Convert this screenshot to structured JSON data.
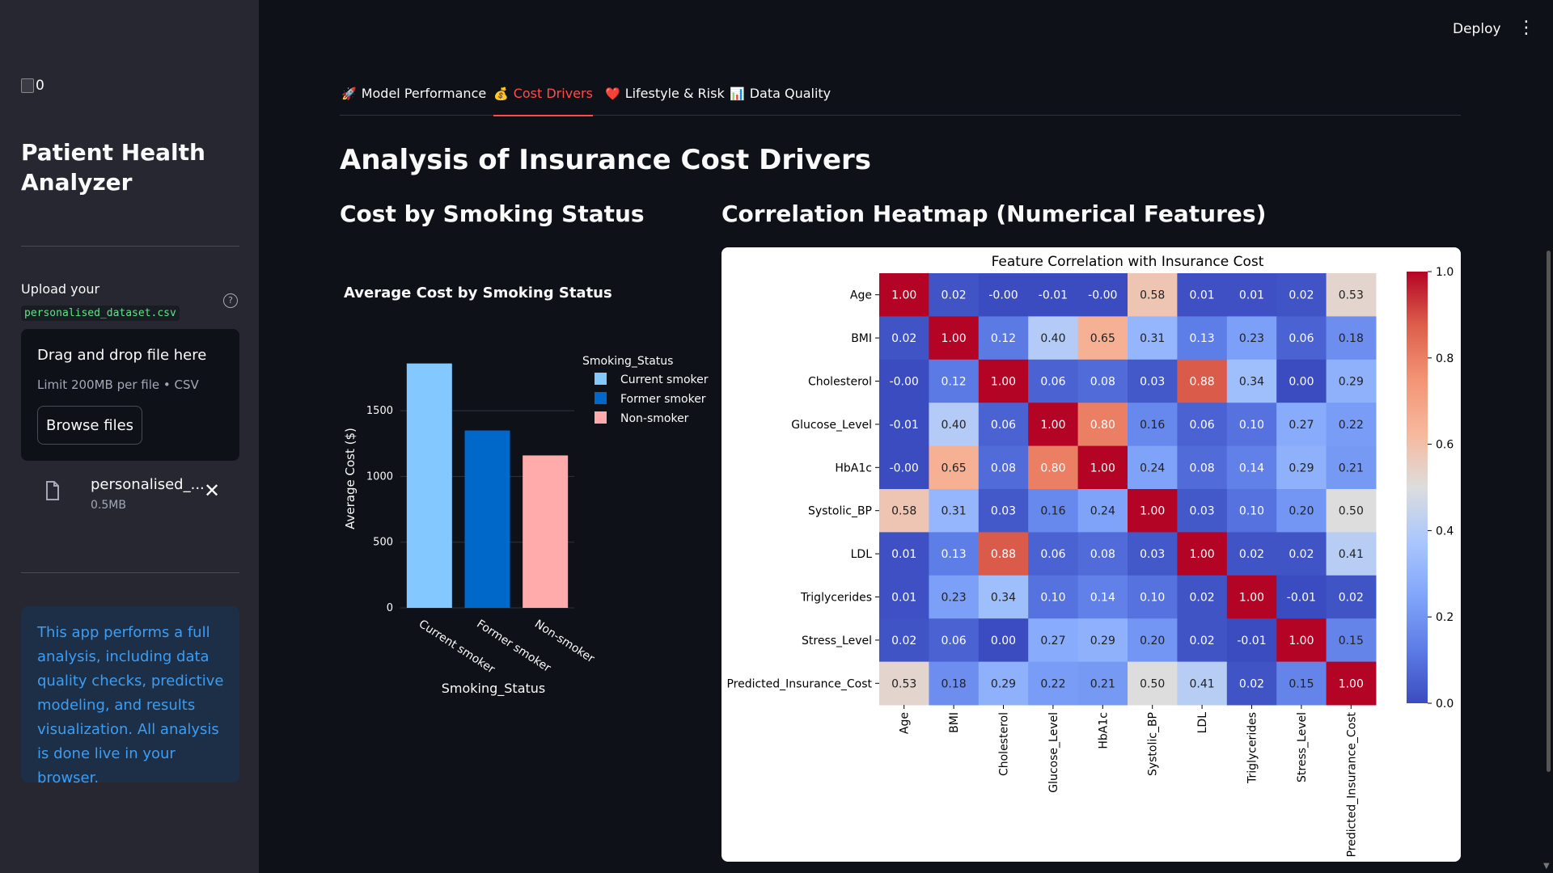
{
  "sidebar": {
    "logo_alt": "0",
    "title": "Patient Health Analyzer",
    "upload_label": "Upload your",
    "upload_filename_code": "personalised_dataset.csv",
    "dropzone_title": "Drag and drop file here",
    "dropzone_limit": "Limit 200MB per file • CSV",
    "browse_label": "Browse files",
    "uploaded_file_name": "personalised_...",
    "uploaded_file_size": "0.5MB",
    "info_text": "This app performs a full analysis, including data quality checks, predictive modeling, and results visualization. All analysis is done live in your browser."
  },
  "header": {
    "deploy_label": "Deploy"
  },
  "tabs": [
    {
      "icon": "🚀",
      "label": "Model Performance"
    },
    {
      "icon": "💰",
      "label": "Cost Drivers"
    },
    {
      "icon": "❤️",
      "label": "Lifestyle & Risk"
    },
    {
      "icon": "📊",
      "label": "Data Quality"
    }
  ],
  "main": {
    "title": "Analysis of Insurance Cost Drivers",
    "left_section_title": "Cost by Smoking Status",
    "right_section_title": "Correlation Heatmap (Numerical Features)"
  },
  "chart_data": [
    {
      "type": "bar",
      "title": "Average Cost by Smoking Status",
      "xlabel": "Smoking_Status",
      "ylabel": "Average Cost ($)",
      "categories": [
        "Current smoker",
        "Former smoker",
        "Non-smoker"
      ],
      "values": [
        1860,
        1350,
        1160
      ],
      "colors": [
        "#83c9ff",
        "#0068c9",
        "#ffabab"
      ],
      "yticks": [
        0,
        500,
        1000,
        1500
      ],
      "ylim": [
        0,
        1950
      ],
      "legend_title": "Smoking_Status",
      "legend": [
        "Current smoker",
        "Former smoker",
        "Non-smoker"
      ],
      "grid": true
    },
    {
      "type": "heatmap",
      "title": "Feature Correlation with Insurance Cost",
      "labels": [
        "Age",
        "BMI",
        "Cholesterol",
        "Glucose_Level",
        "HbA1c",
        "Systolic_BP",
        "LDL",
        "Triglycerides",
        "Stress_Level",
        "Predicted_Insurance_Cost"
      ],
      "cells": [
        [
          "1.00",
          "0.02",
          "-0.00",
          "-0.01",
          "-0.00",
          "0.58",
          "0.01",
          "0.01",
          "0.02",
          "0.53"
        ],
        [
          "0.02",
          "1.00",
          "0.12",
          "0.40",
          "0.65",
          "0.31",
          "0.13",
          "0.23",
          "0.06",
          "0.18"
        ],
        [
          "-0.00",
          "0.12",
          "1.00",
          "0.06",
          "0.08",
          "0.03",
          "0.88",
          "0.34",
          "0.00",
          "0.29"
        ],
        [
          "-0.01",
          "0.40",
          "0.06",
          "1.00",
          "0.80",
          "0.16",
          "0.06",
          "0.10",
          "0.27",
          "0.22"
        ],
        [
          "-0.00",
          "0.65",
          "0.08",
          "0.80",
          "1.00",
          "0.24",
          "0.08",
          "0.14",
          "0.29",
          "0.21"
        ],
        [
          "0.58",
          "0.31",
          "0.03",
          "0.16",
          "0.24",
          "1.00",
          "0.03",
          "0.10",
          "0.20",
          "0.50"
        ],
        [
          "0.01",
          "0.13",
          "0.88",
          "0.06",
          "0.08",
          "0.03",
          "1.00",
          "0.02",
          "0.02",
          "0.41"
        ],
        [
          "0.01",
          "0.23",
          "0.34",
          "0.10",
          "0.14",
          "0.10",
          "0.02",
          "1.00",
          "-0.01",
          "0.02"
        ],
        [
          "0.02",
          "0.06",
          "0.00",
          "0.27",
          "0.29",
          "0.20",
          "0.02",
          "-0.01",
          "1.00",
          "0.15"
        ],
        [
          "0.53",
          "0.18",
          "0.29",
          "0.22",
          "0.21",
          "0.50",
          "0.41",
          "0.02",
          "0.15",
          "1.00"
        ]
      ],
      "colorscale": "coolwarm",
      "vmin": 0.0,
      "vmax": 1.0,
      "colorbar_ticks": [
        "0.0",
        "0.2",
        "0.4",
        "0.6",
        "0.8",
        "1.0"
      ]
    }
  ]
}
